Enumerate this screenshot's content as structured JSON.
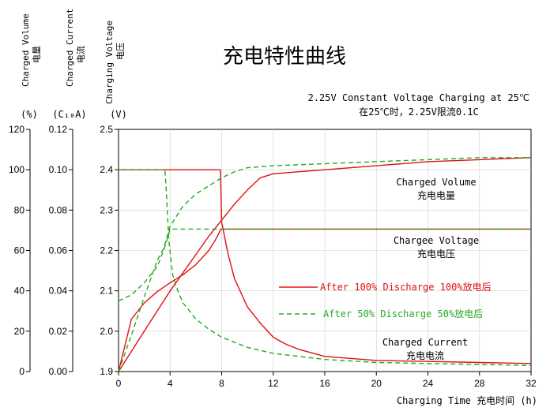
{
  "chart_data": {
    "type": "line",
    "title": "充电特性曲线",
    "subtitle_en": "2.25V Constant Voltage Charging at 25℃",
    "subtitle_cn": "在25℃时，2.25V限流0.1C",
    "xlabel": "Charging Time  充电时间 (h)",
    "xlim": [
      0,
      32
    ],
    "x_ticks": [
      "0",
      "4",
      "8",
      "12",
      "16",
      "20",
      "24",
      "28",
      "32"
    ],
    "axes": {
      "volume": {
        "label_en": "Charged Volume",
        "label_cn": "电量",
        "unit": "(%)",
        "ylim": [
          0,
          120
        ],
        "ticks": [
          "0",
          "20",
          "40",
          "60",
          "80",
          "100",
          "120"
        ]
      },
      "current": {
        "label_en": "Charged Current",
        "label_cn": "电流",
        "unit": "(C₁₀A)",
        "ylim": [
          0,
          0.12
        ],
        "ticks": [
          "0.00",
          "0.02",
          "0.04",
          "0.06",
          "0.08",
          "0.10",
          "0.12"
        ]
      },
      "voltage": {
        "label_en": "Charging Voltage",
        "label_cn": "电压",
        "unit": "(V)",
        "ylim": [
          1.9,
          2.5
        ],
        "ticks": [
          "1.9",
          "2.0",
          "2.1",
          "2.2",
          "2.3",
          "2.4",
          "2.5"
        ]
      }
    },
    "legend": [
      {
        "label": "After 100% Discharge 100%放电后",
        "color": "#e01010",
        "dash": false
      },
      {
        "label": "After 50% Discharge 50%放电后",
        "color": "#22aa22",
        "dash": true
      }
    ],
    "annotations": [
      {
        "en": "Charged Volume",
        "cn": "充电电量",
        "at": [
          24,
          2.35
        ]
      },
      {
        "en": "Chargee Voltage",
        "cn": "充电电压",
        "at": [
          24,
          2.2
        ]
      },
      {
        "en": "Charged Current",
        "cn": "充电电流",
        "at": [
          24,
          1.98
        ]
      }
    ],
    "series": [
      {
        "group": "100%",
        "kind": "voltage",
        "color": "#e01010",
        "dash": false,
        "x": [
          0,
          1,
          2,
          3,
          4,
          5,
          6,
          7,
          7.5,
          7.9,
          8,
          12,
          16,
          20,
          24,
          28,
          32
        ],
        "y": [
          1.9,
          2.03,
          2.07,
          2.098,
          2.12,
          2.14,
          2.165,
          2.2,
          2.225,
          2.25,
          2.253,
          2.253,
          2.253,
          2.253,
          2.253,
          2.253,
          2.253
        ]
      },
      {
        "group": "100%",
        "kind": "volume",
        "color": "#e01010",
        "dash": false,
        "x": [
          0,
          2,
          4,
          6,
          7,
          8,
          9,
          10,
          11,
          12,
          14,
          16,
          20,
          24,
          28,
          32
        ],
        "y": [
          0,
          20,
          40,
          58,
          67,
          75,
          83,
          90,
          96,
          98,
          99,
          100,
          102,
          104,
          105,
          106
        ]
      },
      {
        "group": "100%",
        "kind": "current",
        "color": "#e01010",
        "dash": false,
        "x": [
          0,
          7.9,
          8,
          8.5,
          9,
          10,
          11,
          12,
          13,
          14,
          16,
          20,
          24,
          28,
          32
        ],
        "y": [
          0.1,
          0.1,
          0.074,
          0.058,
          0.046,
          0.032,
          0.024,
          0.017,
          0.0135,
          0.011,
          0.0075,
          0.0055,
          0.005,
          0.0045,
          0.004
        ]
      },
      {
        "group": "50%",
        "kind": "voltage",
        "color": "#22aa22",
        "dash": true,
        "x": [
          0,
          1,
          2,
          3,
          3.5,
          3.8,
          4,
          6,
          12,
          16,
          20,
          24,
          28,
          32
        ],
        "y": [
          2.075,
          2.09,
          2.12,
          2.16,
          2.2,
          2.23,
          2.253,
          2.253,
          2.253,
          2.253,
          2.253,
          2.253,
          2.253,
          2.253
        ]
      },
      {
        "group": "50%",
        "kind": "volume",
        "color": "#22aa22",
        "dash": true,
        "x": [
          0,
          1,
          2,
          3,
          3.5,
          4,
          5,
          6,
          7,
          8,
          9,
          10,
          12,
          16,
          20,
          24,
          28,
          32
        ],
        "y": [
          0,
          18,
          37,
          55,
          61,
          72,
          82,
          88,
          92,
          96,
          99,
          101,
          102,
          103,
          104,
          105,
          106,
          106
        ]
      },
      {
        "group": "50%",
        "kind": "current",
        "color": "#22aa22",
        "dash": true,
        "x": [
          0,
          3.6,
          3.7,
          3.9,
          4.2,
          4.6,
          5,
          6,
          7,
          8,
          10,
          12,
          16,
          20,
          24,
          28,
          32
        ],
        "y": [
          0.1,
          0.1,
          0.09,
          0.065,
          0.048,
          0.04,
          0.034,
          0.026,
          0.021,
          0.017,
          0.012,
          0.009,
          0.006,
          0.0045,
          0.004,
          0.0035,
          0.003
        ]
      }
    ]
  }
}
